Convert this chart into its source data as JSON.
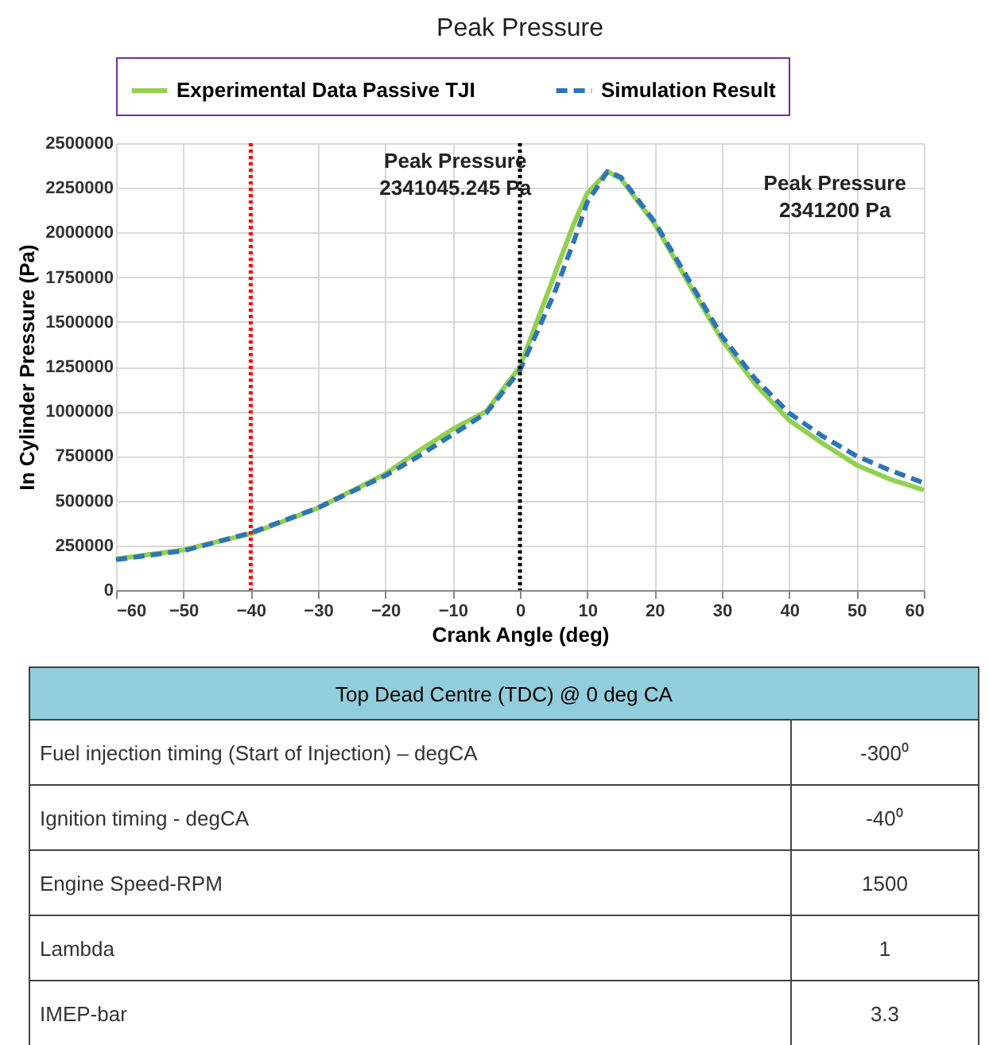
{
  "chart_data": [
    {
      "type": "line",
      "title": "Peak Pressure",
      "xlabel": "Crank Angle (deg)",
      "ylabel": "In Cylinder Pressure (Pa)",
      "xlim": [
        -60,
        60
      ],
      "xticks": [
        -60,
        -50,
        -40,
        -30,
        -20,
        -10,
        0,
        10,
        20,
        30,
        40,
        50,
        60
      ],
      "ylim": [
        0,
        2500000
      ],
      "yticks": [
        0,
        250000,
        500000,
        750000,
        1000000,
        1250000,
        1500000,
        1750000,
        2000000,
        2250000,
        2500000
      ],
      "grid": true,
      "legend": "top",
      "marker": "none",
      "series": [
        {
          "name": "Experimental Data  Passive TJI",
          "color": "#92d050",
          "line_style": "solid",
          "x": [
            -60,
            -50,
            -40,
            -30,
            -20,
            -15,
            -10,
            -5,
            0,
            5,
            8,
            10,
            13,
            15,
            20,
            25,
            30,
            35,
            40,
            45,
            50,
            55,
            60
          ],
          "values": [
            175000,
            225000,
            315000,
            460000,
            650000,
            780000,
            900000,
            1000000,
            1250000,
            1750000,
            2050000,
            2220000,
            2341200,
            2300000,
            2050000,
            1720000,
            1400000,
            1150000,
            950000,
            820000,
            700000,
            620000,
            560000
          ]
        },
        {
          "name": "Simulation Result",
          "color": "#2e75b6",
          "line_style": "dashed",
          "x": [
            -60,
            -50,
            -40,
            -30,
            -20,
            -15,
            -10,
            -5,
            0,
            5,
            8,
            10,
            13,
            15,
            20,
            25,
            30,
            35,
            40,
            45,
            50,
            55,
            60
          ],
          "values": [
            170000,
            220000,
            320000,
            460000,
            640000,
            750000,
            870000,
            990000,
            1230000,
            1650000,
            1950000,
            2170000,
            2341045.245,
            2310000,
            2060000,
            1740000,
            1420000,
            1180000,
            990000,
            860000,
            750000,
            670000,
            600000
          ]
        }
      ],
      "ref_lines": [
        {
          "axis": "x",
          "value": -40,
          "color": "#ff0000",
          "line_style": "dotted"
        },
        {
          "axis": "x",
          "value": 0,
          "color": "#000000",
          "line_style": "dotted"
        }
      ],
      "annotations": [
        "Peak Pressure\n2341045.245 Pa",
        "Peak Pressure\n2341200 Pa"
      ]
    },
    {
      "type": "other",
      "title": "Top Dead Centre (TDC) @ 0 deg CA",
      "annotations": [
        "Fuel injection timing (Start of Injection) – degCA",
        "-300⁰",
        "Ignition timing - degCA",
        "-40⁰",
        "Engine Speed-RPM",
        "1500",
        "Lambda",
        "1",
        "IMEP-bar",
        "3.3"
      ]
    }
  ]
}
